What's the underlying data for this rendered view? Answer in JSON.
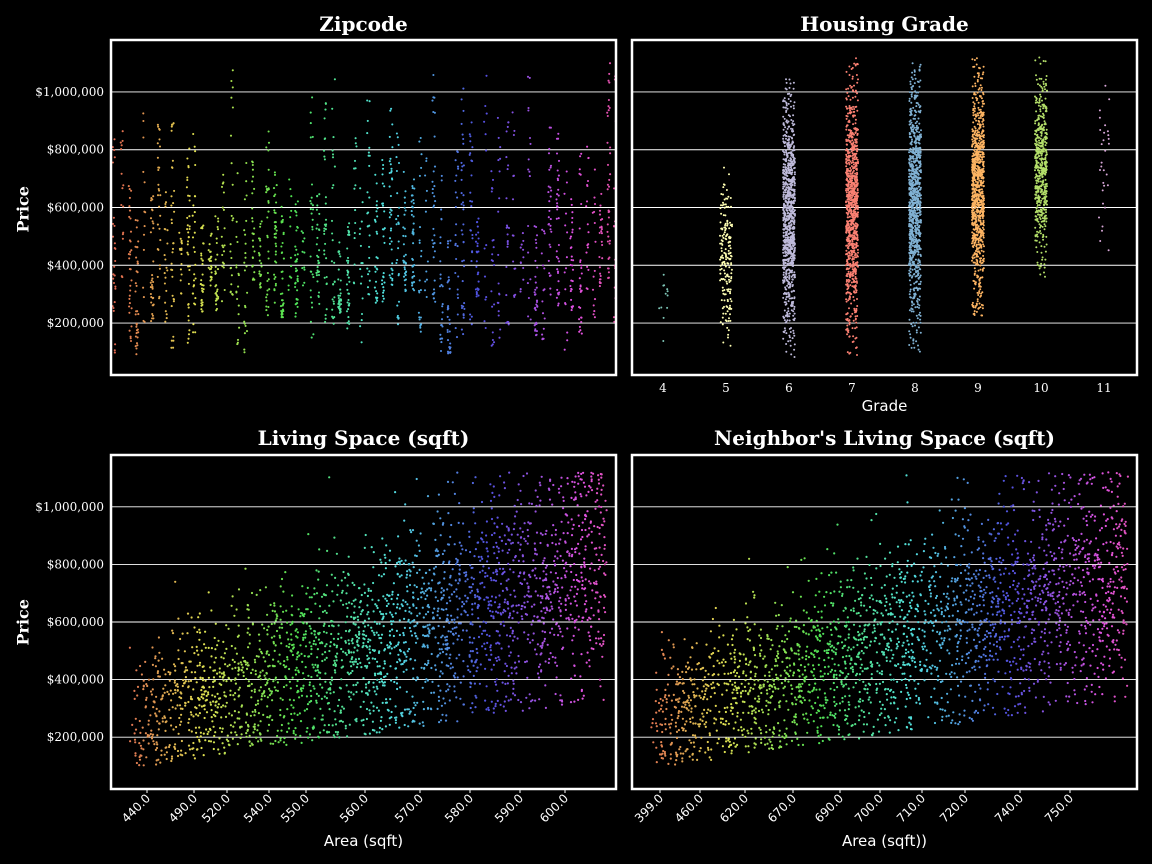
{
  "figure": {
    "background": "#000000",
    "frame_color": "#ffffff",
    "grid_color": "#ffffff"
  },
  "chart_data": [
    {
      "type": "scatter",
      "title": "Zipcode",
      "ylabel": "Price",
      "xlabel": "",
      "yticks": [
        "$200,000",
        "$400,000",
        "$600,000",
        "$800,000",
        "$1,000,000"
      ],
      "ytick_values": [
        200000,
        400000,
        600000,
        800000,
        1000000
      ],
      "ylim": [
        20000,
        1180000
      ],
      "xticks": [],
      "grid": "horizontal",
      "note_points": "approx 70 zipcode strips, palette husl, prices 80k-1.13M"
    },
    {
      "type": "scatter",
      "title": "Housing Grade",
      "xlabel": "Grade",
      "ylabel": "",
      "xticks": [
        "4",
        "5",
        "6",
        "7",
        "8",
        "9",
        "10",
        "11"
      ],
      "ylim": [
        20000,
        1180000
      ],
      "grid": "horizontal",
      "categories": [
        "4",
        "5",
        "6",
        "7",
        "8",
        "9",
        "10",
        "11"
      ],
      "series": [
        {
          "grade": "4",
          "color": "#7fc7b8",
          "ymin": 100000,
          "ymax": 430000,
          "n": 12
        },
        {
          "grade": "5",
          "color": "#ffffb3",
          "ymin": 80000,
          "ymax": 800000,
          "n": 180
        },
        {
          "grade": "6",
          "color": "#bebada",
          "ymin": 80000,
          "ymax": 1050000,
          "n": 900
        },
        {
          "grade": "7",
          "color": "#fb8072",
          "ymin": 80000,
          "ymax": 1120000,
          "n": 2800
        },
        {
          "grade": "8",
          "color": "#80b1d3",
          "ymin": 100000,
          "ymax": 1120000,
          "n": 2400
        },
        {
          "grade": "9",
          "color": "#fdb462",
          "ymin": 220000,
          "ymax": 1120000,
          "n": 1200
        },
        {
          "grade": "10",
          "color": "#b3de69",
          "ymin": 360000,
          "ymax": 1120000,
          "n": 500
        },
        {
          "grade": "11",
          "color": "#d9a8d9",
          "ymin": 420000,
          "ymax": 1100000,
          "n": 30
        }
      ]
    },
    {
      "type": "scatter",
      "title": "Living Space (sqft)",
      "xlabel": "Area (sqft)",
      "ylabel": "Price",
      "yticks": [
        "$200,000",
        "$400,000",
        "$600,000",
        "$800,000",
        "$1,000,000"
      ],
      "xticks": [
        "440.0",
        "490.0",
        "520.0",
        "540.0",
        "550.0",
        "560.0",
        "570.0",
        "580.0",
        "590.0",
        "600.0"
      ],
      "ylim": [
        20000,
        1180000
      ],
      "grid": "horizontal"
    },
    {
      "type": "scatter",
      "title": "Neighbor's Living Space (sqft)",
      "xlabel": "Area (sqft))",
      "ylabel": "",
      "xticks": [
        "399.0",
        "460.0",
        "620.0",
        "670.0",
        "690.0",
        "700.0",
        "710.0",
        "720.0",
        "740.0",
        "750.0"
      ],
      "ylim": [
        20000,
        1180000
      ],
      "grid": "horizontal"
    }
  ]
}
